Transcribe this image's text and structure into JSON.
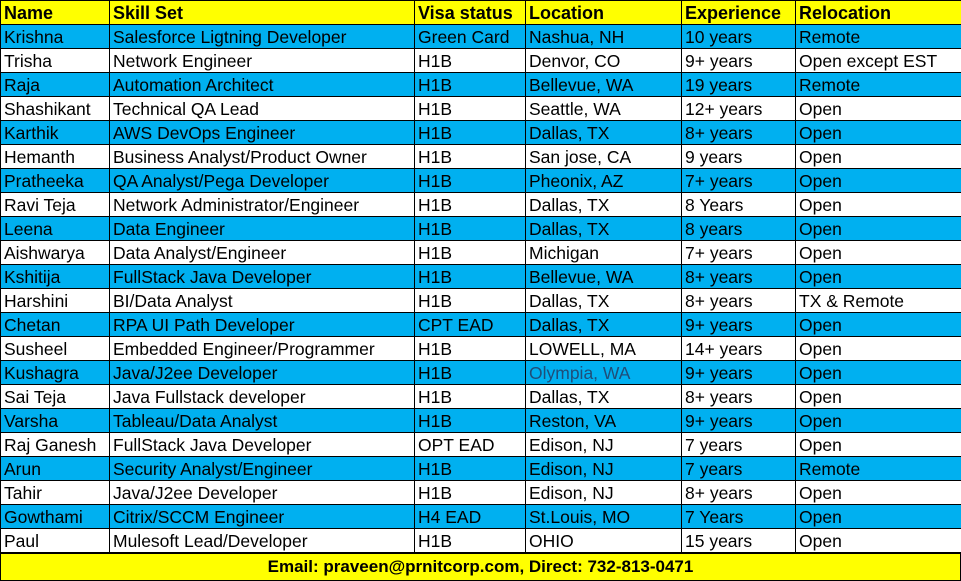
{
  "colors": {
    "header": "#ffff00",
    "alt_row": "#00b0f0",
    "plain_row": "#ffffff",
    "footer": "#ffff00"
  },
  "headers": [
    "Name",
    "Skill Set",
    "Visa status",
    "Location",
    "Experience",
    "Relocation"
  ],
  "rows": [
    [
      "Krishna",
      "Salesforce Ligtning Developer",
      "Green Card",
      "Nashua, NH",
      "10 years",
      "Remote"
    ],
    [
      "Trisha",
      "Network Engineer",
      "H1B",
      "Denvor, CO",
      "9+ years",
      "Open except EST"
    ],
    [
      "Raja",
      "Automation Architect",
      "H1B",
      "Bellevue, WA",
      "19 years",
      "Remote"
    ],
    [
      "Shashikant",
      "Technical QA Lead",
      "H1B",
      "Seattle, WA",
      "12+ years",
      "Open"
    ],
    [
      "Karthik",
      "AWS DevOps Engineer",
      "H1B",
      "Dallas, TX",
      "8+ years",
      "Open"
    ],
    [
      "Hemanth",
      "Business Analyst/Product Owner",
      "H1B",
      "San jose, CA",
      "9 years",
      "Open"
    ],
    [
      "Pratheeka",
      "QA Analyst/Pega Developer",
      "H1B",
      "Pheonix, AZ",
      "7+ years",
      "Open"
    ],
    [
      "Ravi Teja",
      "Network Administrator/Engineer",
      "H1B",
      "Dallas, TX",
      "8 Years",
      "Open"
    ],
    [
      "Leena",
      "Data Engineer",
      "H1B",
      "Dallas, TX",
      "8 years",
      "Open"
    ],
    [
      "Aishwarya",
      "Data Analyst/Engineer",
      "H1B",
      "Michigan",
      "7+ years",
      "Open"
    ],
    [
      "Kshitija",
      "FullStack Java Developer",
      "H1B",
      "Bellevue, WA",
      "8+ years",
      "Open"
    ],
    [
      "Harshini",
      "BI/Data Analyst",
      "H1B",
      "Dallas, TX",
      "8+ years",
      "TX & Remote"
    ],
    [
      "Chetan",
      "RPA UI Path Developer",
      "CPT EAD",
      "Dallas, TX",
      "9+ years",
      "Open"
    ],
    [
      "Susheel",
      "Embedded Engineer/Programmer",
      "H1B",
      "LOWELL, MA",
      "14+ years",
      "Open"
    ],
    [
      "Kushagra",
      "Java/J2ee Developer",
      "H1B",
      "Olympia, WA",
      "9+ years",
      "Open"
    ],
    [
      "Sai Teja",
      "Java Fullstack developer",
      "H1B",
      "Dallas, TX",
      "8+ years",
      "Open"
    ],
    [
      "Varsha",
      "Tableau/Data Analyst",
      "H1B",
      "Reston, VA",
      "9+ years",
      "Open"
    ],
    [
      "Raj Ganesh",
      "FullStack Java Developer",
      "OPT EAD",
      "Edison, NJ",
      "7 years",
      "Open"
    ],
    [
      "Arun",
      "Security Analyst/Engineer",
      "H1B",
      "Edison, NJ",
      "7 years",
      "Remote"
    ],
    [
      "Tahir",
      "Java/J2ee Developer",
      "H1B",
      "Edison, NJ",
      "8+ years",
      "Open"
    ],
    [
      "Gowthami",
      "Citrix/SCCM Engineer",
      "H4 EAD",
      "St.Louis, MO",
      "7 Years",
      "Open"
    ],
    [
      "Paul",
      "Mulesoft Lead/Developer",
      "H1B",
      "OHIO",
      "15 years",
      "Open"
    ]
  ],
  "footer": "Email: praveen@prnitcorp.com, Direct: 732-813-0471"
}
